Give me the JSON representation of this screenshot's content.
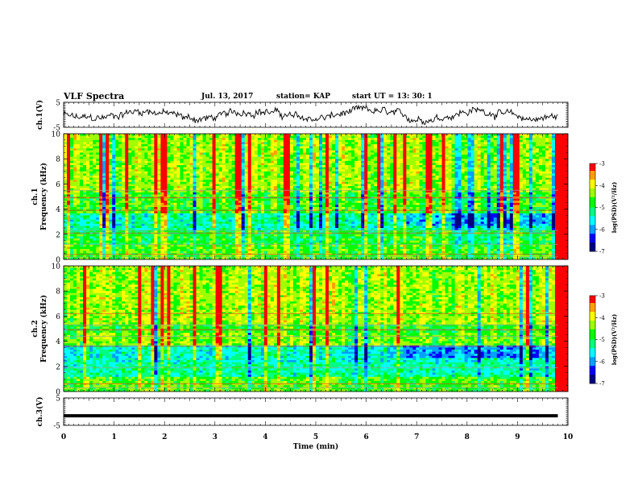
{
  "header": {
    "title": "VLF Spectra",
    "date": "Jul. 13, 2017",
    "station": "station= KAP",
    "start": "start UT = 13: 30: 1"
  },
  "chart_data": [
    {
      "type": "line",
      "name": "ch1-waveform",
      "ylabel": "ch.1(V)",
      "ylim": [
        -5,
        5
      ],
      "yticks": [
        "5",
        "-5"
      ],
      "xlim": [
        0,
        10
      ],
      "data_end_min": 9.8,
      "description_level": "noisy waveform roughly between -2 and 2 V"
    },
    {
      "type": "heatmap",
      "name": "ch1-spectrogram",
      "ylabel": "ch.1 Frequency (kHz)",
      "ylim": [
        0,
        10
      ],
      "yticks": [
        "0",
        "2",
        "4",
        "6",
        "8",
        "10"
      ],
      "xlim": [
        0,
        10
      ],
      "colorbar": {
        "label": "log(PSD)(V²/Hz)",
        "range": [
          -7,
          -3
        ],
        "ticks": [
          "-3",
          "-4",
          "-5",
          "-6",
          "-7"
        ]
      }
    },
    {
      "type": "heatmap",
      "name": "ch2-spectrogram",
      "ylabel": "ch.2 Frequency (kHz)",
      "ylim": [
        0,
        10
      ],
      "yticks": [
        "0",
        "2",
        "4",
        "6",
        "8",
        "10"
      ],
      "xlim": [
        0,
        10
      ],
      "colorbar": {
        "label": "log(PSD)(V²/Hz)",
        "range": [
          -7,
          -3
        ],
        "ticks": [
          "-3",
          "-4",
          "-5",
          "-6",
          "-7"
        ]
      }
    },
    {
      "type": "line",
      "name": "ch3-waveform",
      "ylabel": "ch.3(V)",
      "ylim": [
        -5,
        5
      ],
      "yticks": [
        "5",
        "-5"
      ],
      "xlim": [
        0,
        10
      ],
      "constant_value": -1.5,
      "data_end_min": 9.8
    }
  ],
  "xaxis": {
    "label": "Time (min)",
    "ticks": [
      "0",
      "1",
      "2",
      "3",
      "4",
      "5",
      "6",
      "7",
      "8",
      "9",
      "10"
    ]
  },
  "colormap": [
    "#000080",
    "#0000ff",
    "#00a0ff",
    "#00ffff",
    "#00ff80",
    "#00ff00",
    "#a0ff00",
    "#ffff00",
    "#ffa000",
    "#ff0000",
    "#ffffff"
  ]
}
